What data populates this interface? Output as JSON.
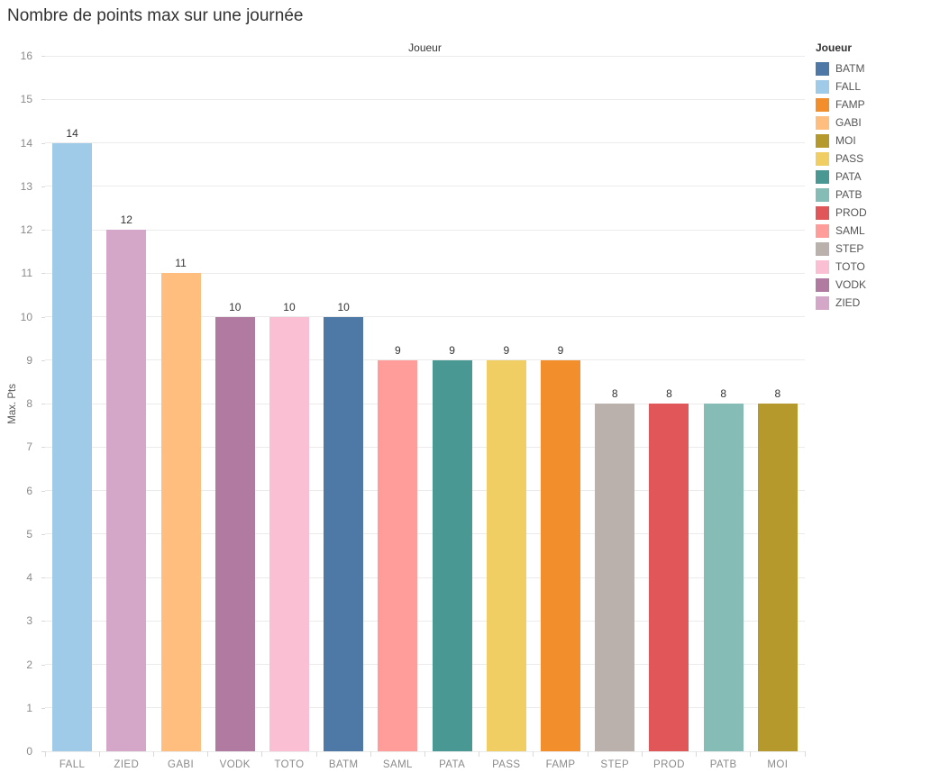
{
  "title": "Nombre de points max sur une journée",
  "column_header": "Joueur",
  "legend": {
    "title": "Joueur",
    "items": [
      {
        "label": "BATM",
        "color": "#4E79A7"
      },
      {
        "label": "FALL",
        "color": "#A0CBE8"
      },
      {
        "label": "FAMP",
        "color": "#F28E2B"
      },
      {
        "label": "GABI",
        "color": "#FFBE7D"
      },
      {
        "label": "MOI",
        "color": "#B6992D"
      },
      {
        "label": "PASS",
        "color": "#F1CE63"
      },
      {
        "label": "PATA",
        "color": "#499894"
      },
      {
        "label": "PATB",
        "color": "#86BCB6"
      },
      {
        "label": "PROD",
        "color": "#E15759"
      },
      {
        "label": "SAML",
        "color": "#FF9D9A"
      },
      {
        "label": "STEP",
        "color": "#BAB0AC"
      },
      {
        "label": "TOTO",
        "color": "#FABFD2"
      },
      {
        "label": "VODK",
        "color": "#B07AA1"
      },
      {
        "label": "ZIED",
        "color": "#D4A6C8"
      }
    ]
  },
  "chart_data": {
    "type": "bar",
    "title": "Nombre de points max sur une journée",
    "xlabel": "Joueur",
    "ylabel": "Max. Pts",
    "categories": [
      "FALL",
      "ZIED",
      "GABI",
      "VODK",
      "TOTO",
      "BATM",
      "SAML",
      "PATA",
      "PASS",
      "FAMP",
      "STEP",
      "PROD",
      "PATB",
      "MOI"
    ],
    "values": [
      14,
      12,
      11,
      10,
      10,
      10,
      9,
      9,
      9,
      9,
      8,
      8,
      8,
      8
    ],
    "colors": [
      "#A0CBE8",
      "#D4A6C8",
      "#FFBE7D",
      "#B07AA1",
      "#FABFD2",
      "#4E79A7",
      "#FF9D9A",
      "#499894",
      "#F1CE63",
      "#F28E2B",
      "#BAB0AC",
      "#E15759",
      "#86BCB6",
      "#B6992D"
    ],
    "value_labels_shown": true,
    "ylim": [
      0,
      16
    ],
    "yticks": [
      0,
      1,
      2,
      3,
      4,
      5,
      6,
      7,
      8,
      9,
      10,
      11,
      12,
      13,
      14,
      15,
      16
    ],
    "grid": "horizontal",
    "gridline_color": "#ebebeb",
    "legend_position": "right"
  }
}
